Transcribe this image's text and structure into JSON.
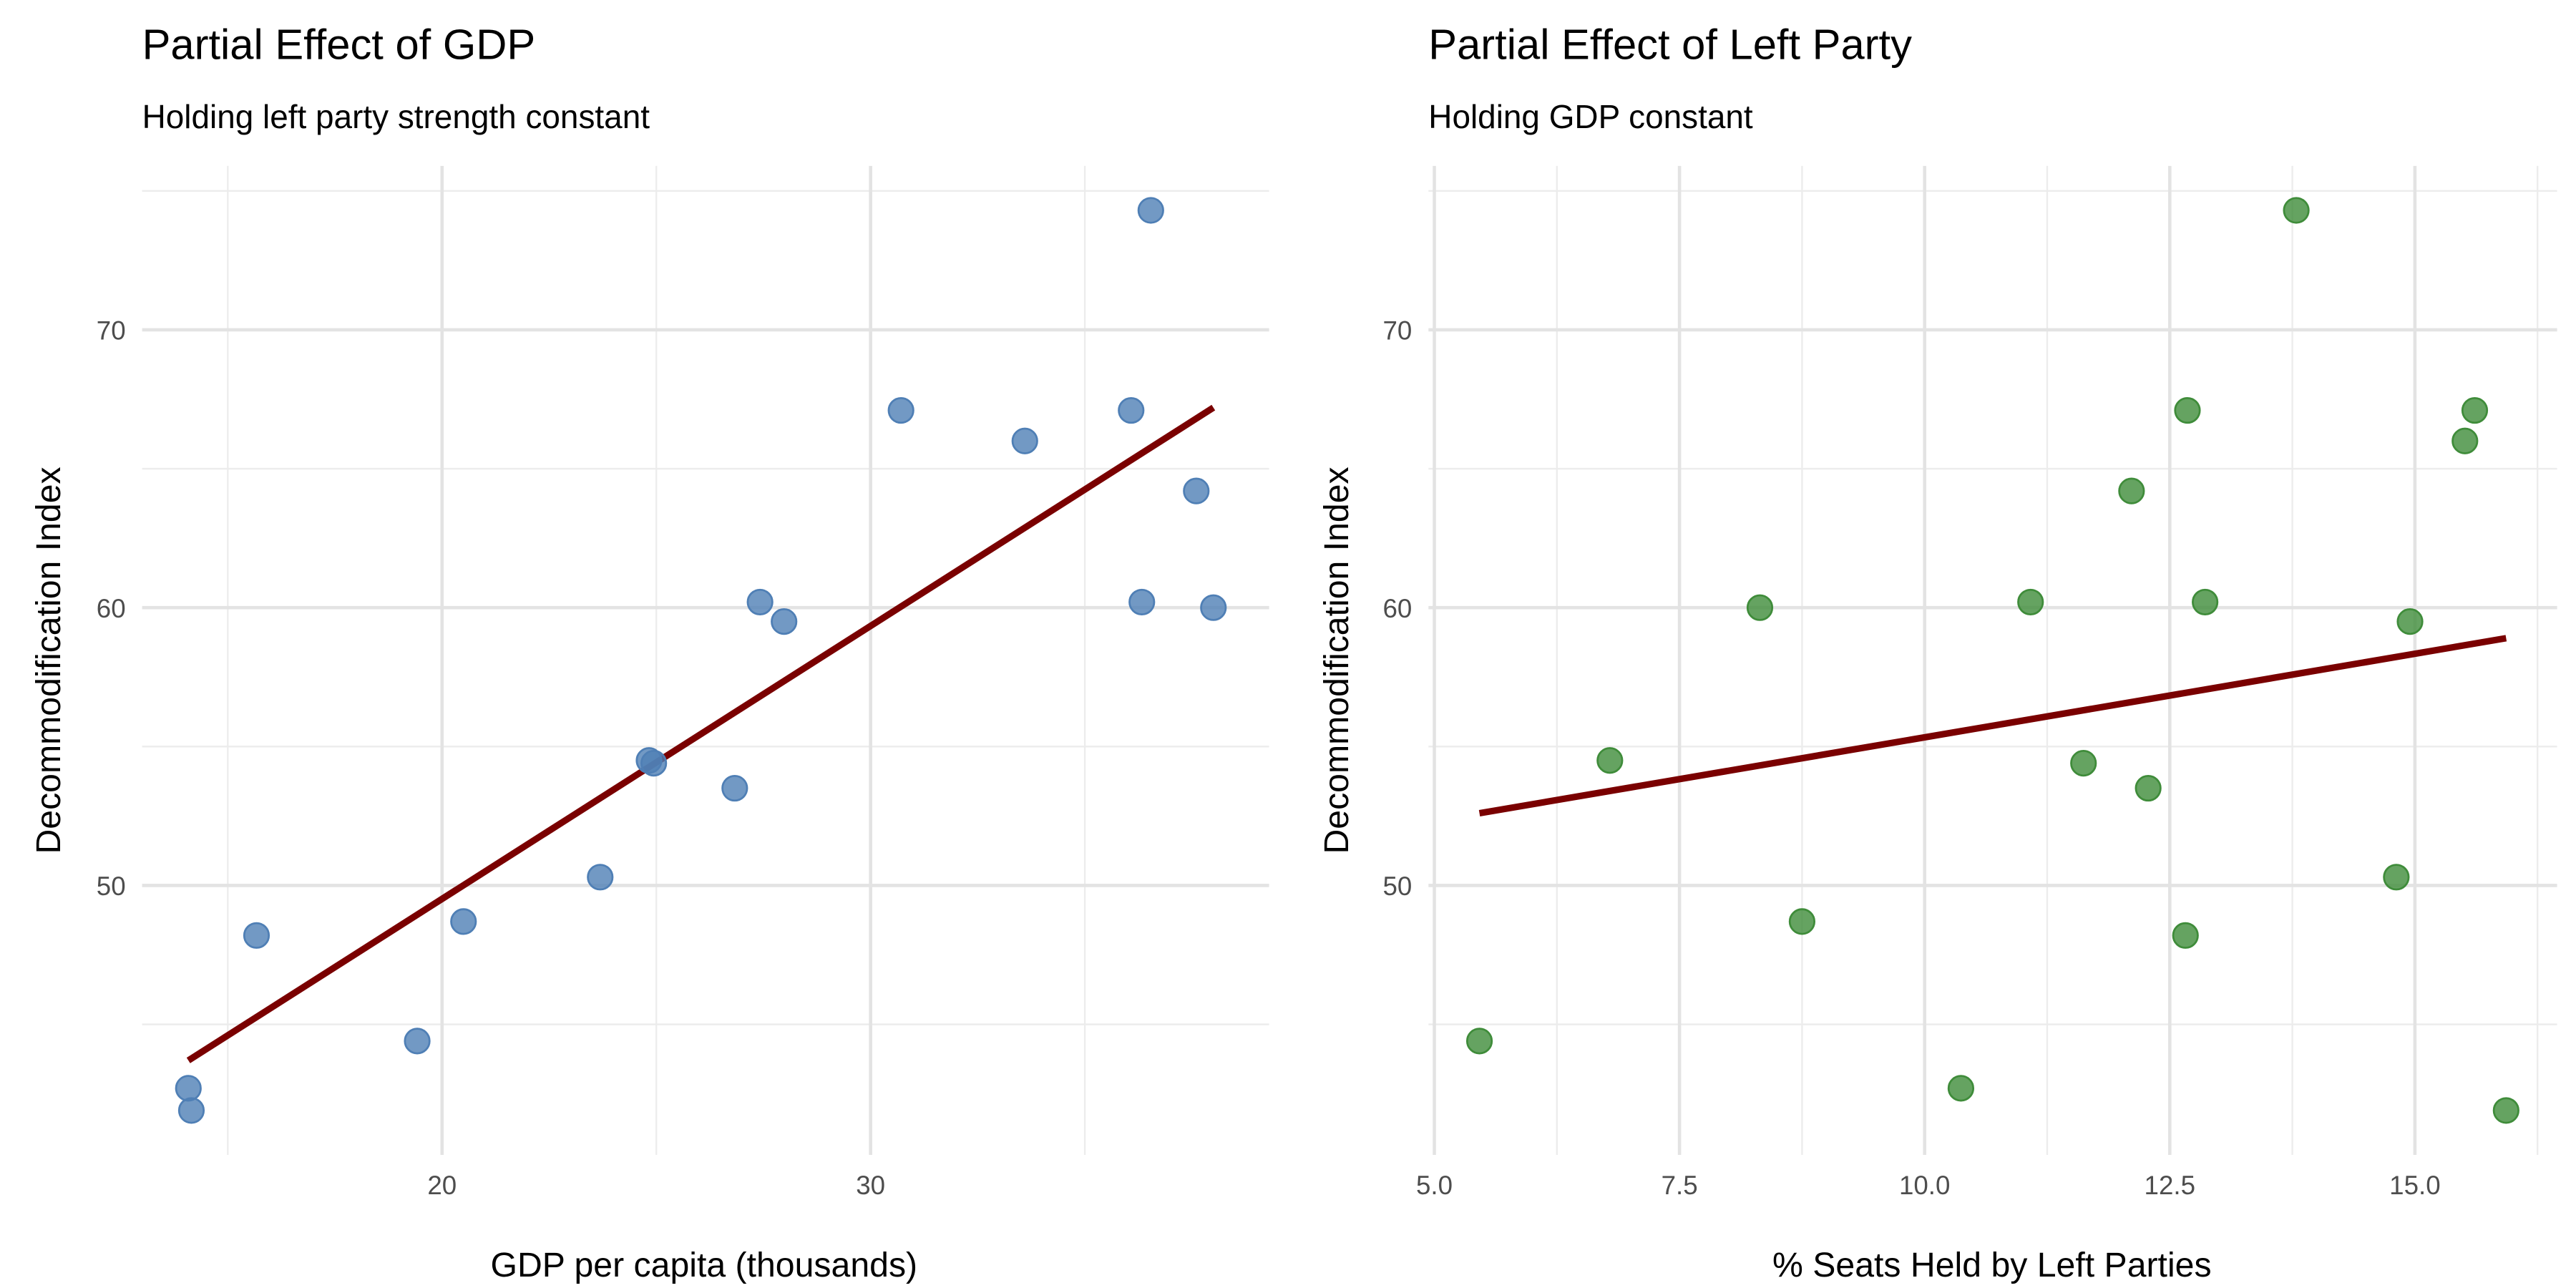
{
  "chart_data": [
    {
      "type": "scatter",
      "title": "Partial Effect of GDP",
      "subtitle": "Holding left party strength constant",
      "xlabel": "GDP per capita (thousands)",
      "ylabel": "Decommodification Index",
      "xlim": [
        13.0,
        39.3
      ],
      "ylim": [
        40.3,
        75.9
      ],
      "x_major_ticks": [
        20,
        30
      ],
      "x_tick_labels": [
        "20",
        "30"
      ],
      "x_minor_ticks": [
        15,
        25,
        35
      ],
      "y_major_ticks": [
        50,
        60,
        70
      ],
      "y_tick_labels": [
        "50",
        "60",
        "70"
      ],
      "y_minor_ticks": [
        45,
        55,
        65,
        75
      ],
      "grid": true,
      "point_color": "#4f7fb5",
      "line_color": "#7a0000",
      "points": [
        [
          14.08,
          42.7
        ],
        [
          14.15,
          41.9
        ],
        [
          15.67,
          48.2
        ],
        [
          19.42,
          44.4
        ],
        [
          20.5,
          48.7
        ],
        [
          23.69,
          50.3
        ],
        [
          24.83,
          54.5
        ],
        [
          24.94,
          54.4
        ],
        [
          26.83,
          53.5
        ],
        [
          27.42,
          60.2
        ],
        [
          27.98,
          59.5
        ],
        [
          30.71,
          67.1
        ],
        [
          33.6,
          66.0
        ],
        [
          36.08,
          67.1
        ],
        [
          36.33,
          60.2
        ],
        [
          36.54,
          74.3
        ],
        [
          37.6,
          64.2
        ],
        [
          38.0,
          60.0
        ]
      ],
      "fit_line": [
        [
          14.08,
          43.7
        ],
        [
          38.0,
          67.2
        ]
      ]
    },
    {
      "type": "scatter",
      "title": "Partial Effect of Left Party",
      "subtitle": "Holding GDP constant",
      "xlabel": "% Seats Held by Left Parties",
      "ylabel": "Decommodification Index",
      "xlim": [
        4.94,
        16.45
      ],
      "ylim": [
        40.3,
        75.9
      ],
      "x_major_ticks": [
        5.0,
        7.5,
        10.0,
        12.5,
        15.0
      ],
      "x_tick_labels": [
        "5.0",
        "7.5",
        "10.0",
        "12.5",
        "15.0"
      ],
      "x_minor_ticks": [
        6.25,
        8.75,
        11.25,
        13.75,
        16.25
      ],
      "y_major_ticks": [
        50,
        60,
        70
      ],
      "y_tick_labels": [
        "50",
        "60",
        "70"
      ],
      "y_minor_ticks": [
        45,
        55,
        65,
        75
      ],
      "grid": true,
      "point_color": "#3f8c3a",
      "line_color": "#7a0000",
      "points": [
        [
          5.46,
          44.4
        ],
        [
          6.79,
          54.5
        ],
        [
          8.32,
          60.0
        ],
        [
          8.75,
          48.7
        ],
        [
          10.37,
          42.7
        ],
        [
          11.08,
          60.2
        ],
        [
          11.62,
          54.4
        ],
        [
          12.11,
          64.2
        ],
        [
          12.28,
          53.5
        ],
        [
          12.68,
          67.1
        ],
        [
          12.66,
          48.2
        ],
        [
          12.86,
          60.2
        ],
        [
          13.79,
          74.3
        ],
        [
          14.81,
          50.3
        ],
        [
          14.95,
          59.5
        ],
        [
          15.51,
          66.0
        ],
        [
          15.61,
          67.1
        ],
        [
          15.93,
          41.9
        ]
      ],
      "fit_line": [
        [
          5.46,
          52.6
        ],
        [
          15.93,
          58.9
        ]
      ]
    }
  ]
}
